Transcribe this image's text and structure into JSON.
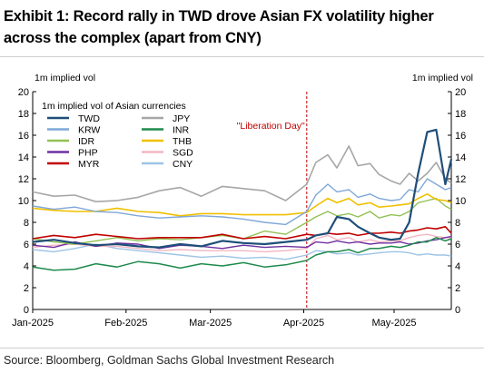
{
  "title_line1": "Exhibit 1: Record rally in TWD drove Asian FX volatility higher",
  "title_line2": "across the complex (apart from CNY)",
  "source": "Source: Bloomberg, Goldman Sachs Global Investment Research",
  "chart_data": {
    "type": "line",
    "title": "",
    "ylabel_left": "1m implied vol",
    "ylabel_right": "1m implied vol",
    "legend_title": "1m implied vol of Asian currencies",
    "legend_placement": "top-left",
    "ylim": [
      0,
      20
    ],
    "yticks": [
      "0",
      "2",
      "4",
      "6",
      "8",
      "10",
      "12",
      "14",
      "16",
      "18",
      "20"
    ],
    "xlim": [
      "2025-01-01",
      "2025-05-20"
    ],
    "xticks": [
      {
        "label": "Jan-2025",
        "date": "2025-01-01"
      },
      {
        "label": "Feb-2025",
        "date": "2025-02-01"
      },
      {
        "label": "Mar-2025",
        "date": "2025-03-01"
      },
      {
        "label": "Apr-2025",
        "date": "2025-04-01"
      },
      {
        "label": "May-2025",
        "date": "2025-05-01"
      }
    ],
    "grid": false,
    "annotation": {
      "label": "\"Liberation Day\"",
      "date": "2025-04-02",
      "color": "#c00000"
    },
    "x": [
      "2025-01-01",
      "2025-01-08",
      "2025-01-15",
      "2025-01-22",
      "2025-01-29",
      "2025-02-05",
      "2025-02-12",
      "2025-02-19",
      "2025-02-26",
      "2025-03-05",
      "2025-03-12",
      "2025-03-19",
      "2025-03-26",
      "2025-04-02",
      "2025-04-05",
      "2025-04-09",
      "2025-04-12",
      "2025-04-16",
      "2025-04-19",
      "2025-04-23",
      "2025-04-26",
      "2025-04-30",
      "2025-05-03",
      "2025-05-06",
      "2025-05-09",
      "2025-05-12",
      "2025-05-15",
      "2025-05-18",
      "2025-05-20"
    ],
    "series": [
      {
        "name": "TWD",
        "color": "#1f4e79",
        "width": 2.2,
        "values": [
          6.2,
          6.4,
          6.1,
          5.9,
          6.0,
          5.8,
          5.7,
          6.0,
          5.8,
          6.3,
          6.1,
          6.0,
          6.2,
          6.4,
          6.8,
          7.0,
          8.5,
          8.3,
          7.6,
          7.0,
          6.6,
          6.4,
          6.5,
          8.0,
          12.5,
          16.3,
          16.5,
          11.5,
          13.8
        ]
      },
      {
        "name": "JPY",
        "color": "#a6a6a6",
        "width": 1.6,
        "values": [
          10.8,
          10.4,
          10.5,
          9.9,
          10.0,
          10.3,
          10.9,
          11.2,
          10.4,
          11.3,
          11.1,
          10.9,
          10.0,
          11.5,
          13.5,
          14.2,
          13.0,
          15.0,
          13.2,
          13.4,
          12.4,
          11.8,
          11.5,
          12.5,
          11.8,
          12.5,
          13.5,
          12.0,
          11.6
        ]
      },
      {
        "name": "KRW",
        "color": "#7fa7d8",
        "width": 1.4,
        "values": [
          9.5,
          9.2,
          9.4,
          9.0,
          8.9,
          8.6,
          8.4,
          8.5,
          8.6,
          8.5,
          8.3,
          8.0,
          7.8,
          9.0,
          10.5,
          11.5,
          10.8,
          11.0,
          10.3,
          10.6,
          10.2,
          10.0,
          10.1,
          11.0,
          10.8,
          12.0,
          11.5,
          11.0,
          11.2
        ]
      },
      {
        "name": "INR",
        "color": "#1e8a4c",
        "width": 1.5,
        "values": [
          3.9,
          3.6,
          3.7,
          4.2,
          3.9,
          4.4,
          4.2,
          3.8,
          4.2,
          4.0,
          4.3,
          3.9,
          4.1,
          4.5,
          5.0,
          5.3,
          5.3,
          5.5,
          5.2,
          5.6,
          5.6,
          5.8,
          5.7,
          5.9,
          6.2,
          6.2,
          6.6,
          6.3,
          6.5
        ]
      },
      {
        "name": "IDR",
        "color": "#92c153",
        "width": 1.4,
        "values": [
          6.5,
          6.2,
          6.0,
          6.3,
          6.6,
          6.3,
          6.5,
          6.4,
          6.6,
          6.8,
          6.5,
          7.2,
          6.9,
          8.0,
          8.5,
          9.0,
          8.6,
          8.8,
          8.5,
          9.0,
          8.4,
          8.7,
          8.6,
          9.0,
          9.8,
          10.0,
          10.2,
          9.5,
          9.2
        ]
      },
      {
        "name": "THB",
        "color": "#f0c000",
        "width": 1.6,
        "values": [
          9.3,
          9.1,
          9.0,
          9.0,
          9.3,
          9.0,
          8.9,
          8.6,
          8.8,
          8.8,
          8.7,
          8.7,
          8.7,
          8.9,
          9.5,
          10.2,
          9.8,
          10.2,
          9.6,
          9.8,
          9.4,
          9.5,
          9.6,
          9.7,
          10.2,
          10.6,
          10.1,
          10.0,
          9.8
        ]
      },
      {
        "name": "PHP",
        "color": "#7030a0",
        "width": 1.4,
        "values": [
          5.9,
          5.7,
          6.2,
          5.8,
          6.1,
          6.0,
          5.6,
          5.9,
          5.8,
          5.6,
          5.9,
          5.7,
          5.8,
          5.7,
          6.2,
          6.1,
          6.3,
          6.1,
          6.2,
          6.0,
          6.1,
          6.1,
          6.2,
          6.0,
          6.1,
          6.3,
          6.4,
          6.6,
          6.7
        ]
      },
      {
        "name": "SGD",
        "color": "#f4b6c2",
        "width": 1.4,
        "values": [
          5.7,
          5.9,
          6.0,
          5.8,
          5.8,
          5.6,
          5.4,
          5.5,
          5.4,
          5.4,
          5.4,
          5.3,
          5.4,
          5.6,
          6.5,
          6.8,
          6.4,
          6.6,
          6.2,
          6.4,
          6.2,
          6.3,
          6.3,
          6.6,
          6.8,
          6.9,
          6.7,
          6.6,
          6.6
        ]
      },
      {
        "name": "MYR",
        "color": "#c00000",
        "width": 1.6,
        "values": [
          6.5,
          6.8,
          6.6,
          6.9,
          6.7,
          6.5,
          6.6,
          6.6,
          6.6,
          6.9,
          6.5,
          6.7,
          6.5,
          6.9,
          6.8,
          7.0,
          6.9,
          7.0,
          6.8,
          7.0,
          7.0,
          7.1,
          7.0,
          7.2,
          7.3,
          7.5,
          7.4,
          7.6,
          7.0
        ]
      },
      {
        "name": "CNY",
        "color": "#9dc3e6",
        "width": 1.4,
        "values": [
          5.5,
          5.3,
          5.6,
          6.0,
          5.6,
          5.4,
          5.2,
          5.0,
          4.8,
          4.9,
          4.7,
          4.8,
          4.6,
          5.0,
          5.4,
          5.3,
          5.1,
          5.2,
          5.0,
          5.1,
          5.2,
          5.3,
          5.3,
          5.2,
          5.0,
          5.1,
          5.0,
          5.0,
          4.9
        ]
      }
    ]
  }
}
